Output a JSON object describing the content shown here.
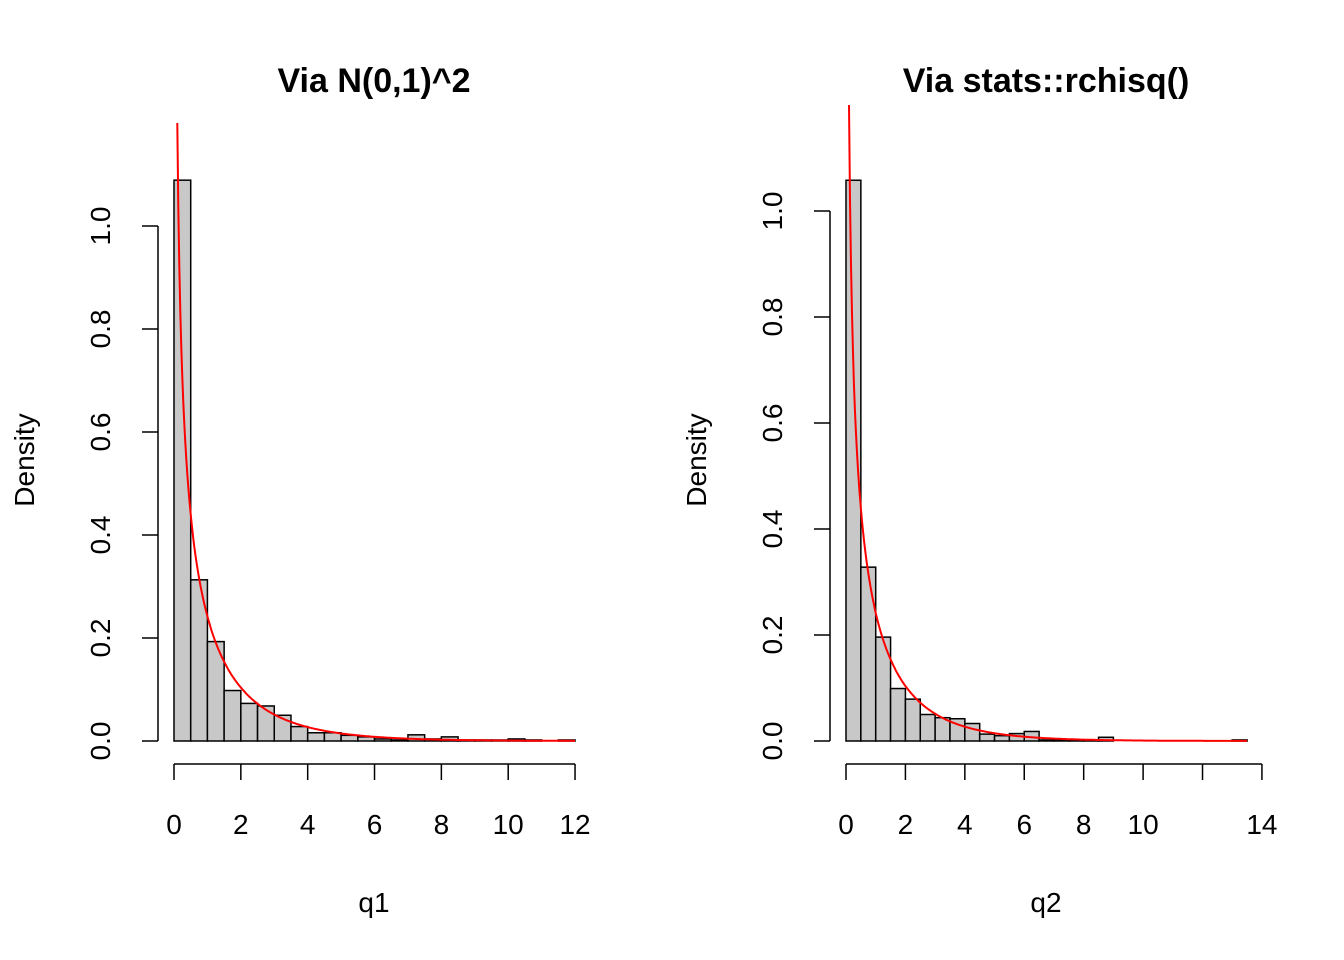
{
  "chart_data": [
    {
      "type": "bar",
      "subtype": "histogram",
      "title": "Via N(0,1)^2",
      "xlabel": "q1",
      "ylabel": "Density",
      "xlim": [
        0,
        12
      ],
      "ylim": [
        0,
        1.09
      ],
      "bin_width": 0.5,
      "bin_start": 0,
      "values": [
        1.089,
        0.313,
        0.193,
        0.098,
        0.073,
        0.068,
        0.05,
        0.028,
        0.016,
        0.016,
        0.011,
        0.008,
        0.004,
        0.002,
        0.012,
        0.004,
        0.008,
        0.002,
        0.002,
        0.002,
        0.004,
        0.002,
        0.0,
        0.002
      ],
      "xticks": [
        0,
        2,
        4,
        6,
        8,
        10,
        12
      ],
      "xtick_labels": [
        "0",
        "2",
        "4",
        "6",
        "8",
        "10",
        "12"
      ],
      "yticks": [
        0,
        0.2,
        0.4,
        0.6,
        0.8,
        1.0
      ],
      "ytick_labels": [
        "0.0",
        "0.2",
        "0.4",
        "0.6",
        "0.8",
        "1.0"
      ],
      "bar_fill": "#c8c8c8",
      "curve": {
        "name": "dchisq(x, df=1)",
        "color": "#ff0000",
        "df": 1,
        "from": 0.1,
        "to": 12
      }
    },
    {
      "type": "bar",
      "subtype": "histogram",
      "title": "Via stats::rchisq()",
      "xlabel": "q2",
      "ylabel": "Density",
      "xlim": [
        0,
        14
      ],
      "ylim": [
        0,
        1.06
      ],
      "bin_width": 0.5,
      "bin_start": 0,
      "values": [
        1.058,
        0.328,
        0.196,
        0.099,
        0.079,
        0.05,
        0.044,
        0.042,
        0.033,
        0.013,
        0.01,
        0.014,
        0.018,
        0.002,
        0.002,
        0.002,
        0.002,
        0.007,
        0.0,
        0.0,
        0.0,
        0.0,
        0.0,
        0.0,
        0.0,
        0.0,
        0.002
      ],
      "xticks": [
        0,
        2,
        4,
        6,
        8,
        10,
        12,
        14
      ],
      "xtick_labels": [
        "0",
        "2",
        "4",
        "6",
        "8",
        "10",
        "",
        "14"
      ],
      "yticks": [
        0,
        0.2,
        0.4,
        0.6,
        0.8,
        1.0
      ],
      "ytick_labels": [
        "0.0",
        "0.2",
        "0.4",
        "0.6",
        "0.8",
        "1.0"
      ],
      "bar_fill": "#c8c8c8",
      "curve": {
        "name": "dchisq(x, df=1)",
        "color": "#ff0000",
        "df": 1,
        "from": 0.1,
        "to": 13.5
      }
    }
  ]
}
